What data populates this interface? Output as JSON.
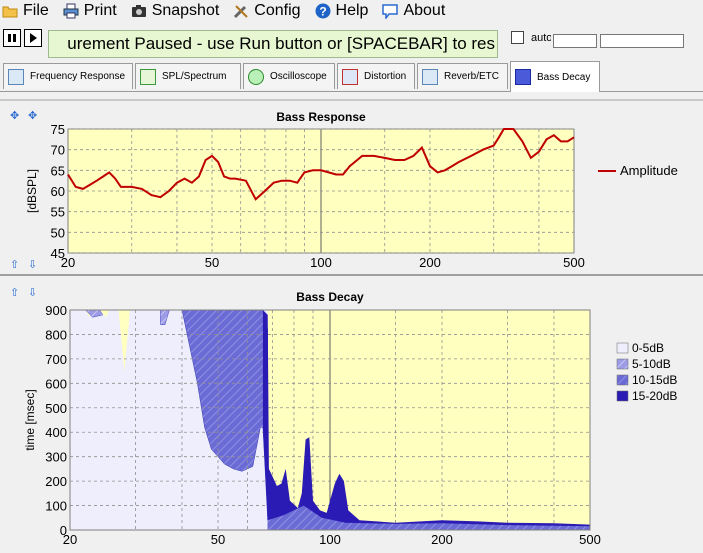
{
  "menu": {
    "file": "File",
    "print": "Print",
    "snapshot": "Snapshot",
    "config": "Config",
    "help": "Help",
    "about": "About"
  },
  "status": {
    "text": "urement Paused - use Run button or [SPACEBAR] to res",
    "auto_label": "auto"
  },
  "tabs": [
    {
      "label": "Frequency Response"
    },
    {
      "label": "SPL/Spectrum"
    },
    {
      "label": "Oscilloscope"
    },
    {
      "label": "Distortion"
    },
    {
      "label": "Reverb/ETC"
    },
    {
      "label": "Bass Decay"
    }
  ],
  "colors": {
    "plot_bg": "#ffffc0",
    "line": "#c00000",
    "band0": "#eeeefc",
    "band1": "#9b9be6",
    "band2": "#6b6bd6",
    "band3": "#2a1bb4"
  },
  "chart_data": [
    {
      "type": "line",
      "title": "Bass Response",
      "ylabel": "[dBSPL]",
      "xscale": "log",
      "xlim": [
        20,
        500
      ],
      "ylim": [
        45,
        75
      ],
      "xticks": [
        "20",
        "50",
        "100",
        "200",
        "500"
      ],
      "yticks": [
        "45",
        "50",
        "55",
        "60",
        "65",
        "70",
        "75"
      ],
      "series": [
        {
          "name": "Amplitude",
          "x": [
            20,
            21,
            22,
            23,
            24,
            25,
            26,
            27,
            28,
            30,
            32,
            34,
            36,
            38,
            40,
            42,
            44,
            46,
            48,
            50,
            52,
            54,
            56,
            58,
            62,
            66,
            70,
            74,
            78,
            82,
            86,
            90,
            95,
            100,
            105,
            110,
            115,
            120,
            130,
            140,
            150,
            160,
            170,
            180,
            190,
            200,
            210,
            220,
            230,
            240,
            260,
            280,
            300,
            310,
            320,
            340,
            360,
            380,
            400,
            420,
            440,
            460,
            480,
            500
          ],
          "y": [
            64,
            61,
            60.5,
            61.5,
            62.5,
            63.5,
            64.5,
            63,
            61,
            61,
            60.5,
            59,
            58.5,
            60,
            62,
            63,
            62,
            63.5,
            67.5,
            68.5,
            67,
            63.5,
            63,
            63,
            62.5,
            58,
            60,
            62,
            62.5,
            62.5,
            62,
            64.5,
            65,
            65,
            64.5,
            64,
            64,
            66,
            68.5,
            68.5,
            68,
            67.5,
            67.5,
            68.5,
            70.5,
            66,
            64.5,
            65,
            66,
            67,
            68.5,
            70,
            71,
            73,
            75,
            75,
            72,
            68,
            69.5,
            72.5,
            73.5,
            72,
            72,
            73
          ]
        }
      ],
      "legend_position": "right"
    },
    {
      "type": "area",
      "title": "Bass Decay",
      "ylabel": "time [msec]",
      "xscale": "log",
      "xlim": [
        20,
        500
      ],
      "ylim": [
        0,
        900
      ],
      "xticks": [
        "20",
        "50",
        "100",
        "200",
        "500"
      ],
      "yticks": [
        "0",
        "100",
        "200",
        "300",
        "400",
        "500",
        "600",
        "700",
        "800",
        "900"
      ],
      "series": [
        {
          "name": "0-5dB",
          "x": [
            20,
            25,
            30,
            35,
            40,
            45,
            50,
            55,
            60,
            65,
            68
          ],
          "y": [
            900,
            900,
            900,
            900,
            900,
            900,
            900,
            900,
            900,
            900,
            900
          ]
        },
        {
          "name": "5-10dB",
          "x": [
            68,
            75,
            85,
            100,
            150,
            200,
            300,
            500
          ],
          "y": [
            40,
            40,
            35,
            30,
            30,
            30,
            25,
            20
          ]
        },
        {
          "name": "10-15dB",
          "x": [
            68,
            80,
            90,
            100,
            120,
            150,
            200,
            300,
            500
          ],
          "y": [
            130,
            100,
            80,
            60,
            40,
            35,
            40,
            35,
            30
          ]
        },
        {
          "name": "15-20dB",
          "x": [
            68,
            75,
            85,
            90,
            100,
            105,
            110,
            150,
            200,
            300,
            500
          ],
          "y": [
            250,
            180,
            380,
            70,
            120,
            230,
            40,
            25,
            25,
            20,
            15
          ]
        }
      ],
      "legend_position": "right"
    }
  ]
}
